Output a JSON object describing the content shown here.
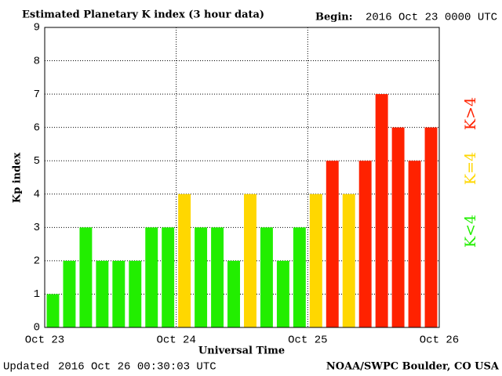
{
  "chart_data": {
    "type": "bar",
    "title": "Estimated Planetary K index (3 hour data)",
    "begin_label": "Begin:",
    "begin": "2016 Oct 23 0000 UTC",
    "ylabel": "Kp index",
    "xlabel": "Universal Time",
    "updated_label": "Updated",
    "updated": "2016 Oct 26 00:30:03 UTC",
    "source": "NOAA/SWPC Boulder, CO USA",
    "categories": [
      null,
      null,
      null,
      null,
      null,
      null,
      null,
      null,
      null,
      null,
      null,
      null,
      null,
      null,
      null,
      null,
      null,
      null,
      null,
      null,
      null,
      null,
      null,
      null
    ],
    "values": [
      1,
      2,
      3,
      2,
      2,
      2,
      3,
      3,
      4,
      3,
      3,
      2,
      4,
      3,
      2,
      3,
      4,
      5,
      4,
      5,
      7,
      6,
      5,
      6
    ],
    "colors": [
      "#22ee00",
      "#22ee00",
      "#22ee00",
      "#22ee00",
      "#22ee00",
      "#22ee00",
      "#22ee00",
      "#22ee00",
      "#ffd700",
      "#22ee00",
      "#22ee00",
      "#22ee00",
      "#ffd700",
      "#22ee00",
      "#22ee00",
      "#22ee00",
      "#ffd700",
      "#ff2200",
      "#ffd700",
      "#ff2200",
      "#ff2200",
      "#ff2200",
      "#ff2200",
      "#ff2200"
    ],
    "legend": [
      {
        "name": "K<4",
        "color": "#22ee00"
      },
      {
        "name": "K=4",
        "color": "#ffd700"
      },
      {
        "name": "K>4",
        "color": "#ff2200"
      }
    ],
    "xlim": [
      0,
      24
    ],
    "xticks": [
      {
        "value": 0,
        "label": "Oct 23"
      },
      {
        "value": 8,
        "label": "Oct 24"
      },
      {
        "value": 16,
        "label": "Oct 25"
      },
      {
        "value": 24,
        "label": "Oct 26"
      }
    ],
    "ylim": [
      0,
      9
    ],
    "yticks": [
      0,
      1,
      2,
      3,
      4,
      5,
      6,
      7,
      8,
      9
    ],
    "grid": true
  }
}
